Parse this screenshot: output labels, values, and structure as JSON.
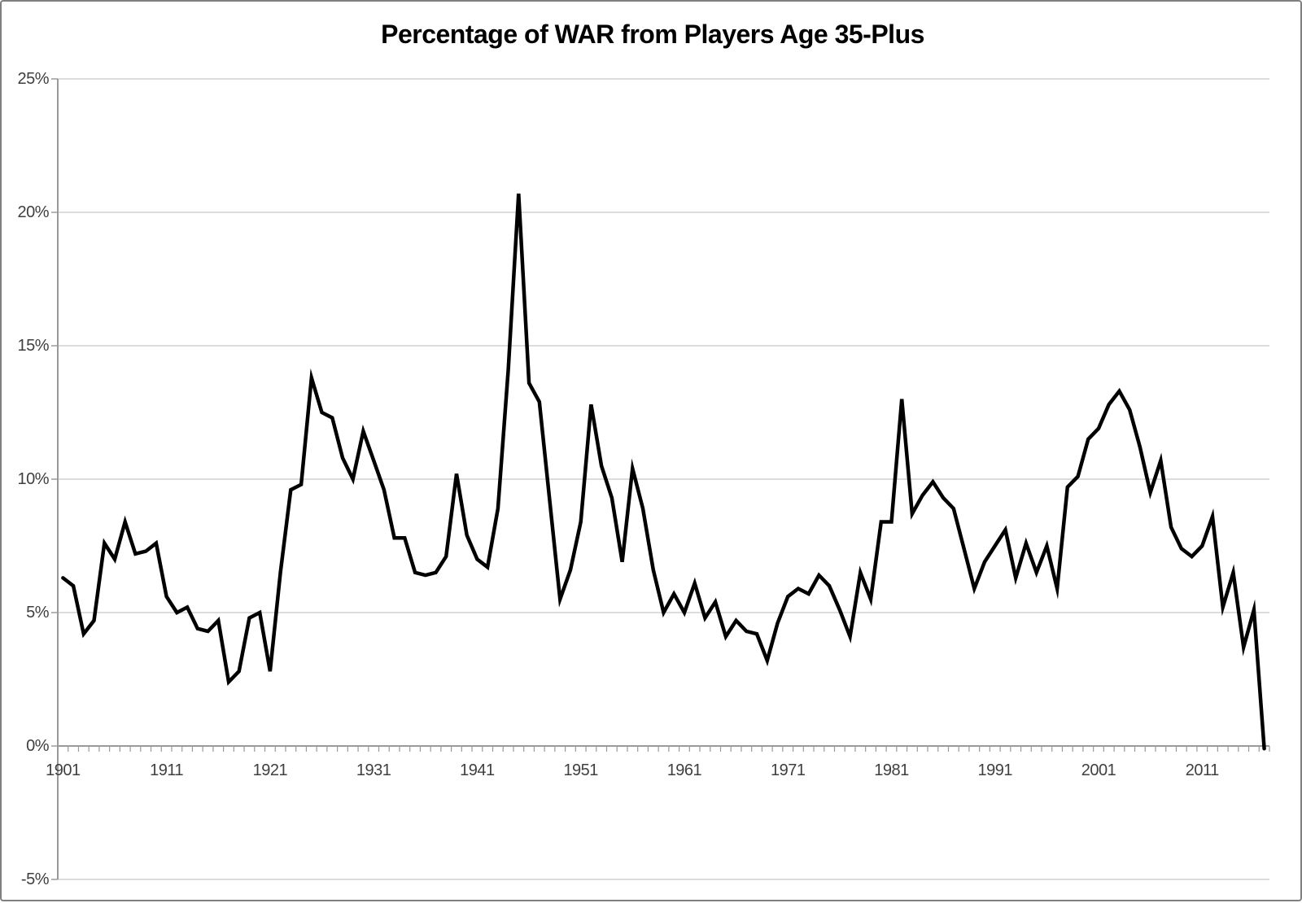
{
  "chart_data": {
    "type": "line",
    "title": "Percentage of WAR from Players Age 35-Plus",
    "xlabel": "",
    "ylabel": "",
    "ylim": [
      -5,
      25
    ],
    "xlim_years": [
      1901,
      2017
    ],
    "grid": "horizontal",
    "legend": "none",
    "ytick_labels": [
      "25%",
      "20%",
      "15%",
      "10%",
      "5%",
      "0%",
      "-5%"
    ],
    "ytick_values": [
      25,
      20,
      15,
      10,
      5,
      0,
      -5
    ],
    "xtick_labels": [
      "1901",
      "1911",
      "1921",
      "1931",
      "1941",
      "1951",
      "1961",
      "1971",
      "1981",
      "1991",
      "2001",
      "2011"
    ],
    "xtick_years": [
      1901,
      1911,
      1921,
      1931,
      1941,
      1951,
      1961,
      1971,
      1981,
      1991,
      2001,
      2011
    ],
    "colors": {
      "line": "#000000",
      "gridline": "#c6c6c6",
      "axis": "#9a9a9a",
      "label": "#3f3f3f",
      "frame": "#7f7f7f",
      "background": "#ffffff"
    },
    "points": [
      [
        1901,
        6.3
      ],
      [
        1902,
        6.0
      ],
      [
        1903,
        4.2
      ],
      [
        1904,
        4.7
      ],
      [
        1905,
        7.6
      ],
      [
        1906,
        7.0
      ],
      [
        1907,
        8.4
      ],
      [
        1908,
        7.2
      ],
      [
        1909,
        7.3
      ],
      [
        1910,
        7.6
      ],
      [
        1911,
        5.6
      ],
      [
        1912,
        5.0
      ],
      [
        1913,
        5.2
      ],
      [
        1914,
        4.4
      ],
      [
        1915,
        4.3
      ],
      [
        1916,
        4.7
      ],
      [
        1917,
        2.4
      ],
      [
        1918,
        2.8
      ],
      [
        1919,
        4.8
      ],
      [
        1920,
        5.0
      ],
      [
        1921,
        2.8
      ],
      [
        1922,
        6.5
      ],
      [
        1923,
        9.6
      ],
      [
        1924,
        9.8
      ],
      [
        1925,
        13.8
      ],
      [
        1926,
        12.5
      ],
      [
        1927,
        12.3
      ],
      [
        1928,
        10.8
      ],
      [
        1929,
        10.0
      ],
      [
        1930,
        11.8
      ],
      [
        1931,
        10.7
      ],
      [
        1932,
        9.6
      ],
      [
        1933,
        7.8
      ],
      [
        1934,
        7.8
      ],
      [
        1935,
        6.5
      ],
      [
        1936,
        6.4
      ],
      [
        1937,
        6.5
      ],
      [
        1938,
        7.1
      ],
      [
        1939,
        10.2
      ],
      [
        1940,
        7.9
      ],
      [
        1941,
        7.0
      ],
      [
        1942,
        6.7
      ],
      [
        1943,
        8.9
      ],
      [
        1944,
        14.1
      ],
      [
        1945,
        20.7
      ],
      [
        1946,
        13.6
      ],
      [
        1947,
        12.9
      ],
      [
        1948,
        9.2
      ],
      [
        1949,
        5.5
      ],
      [
        1950,
        6.6
      ],
      [
        1951,
        8.4
      ],
      [
        1952,
        12.8
      ],
      [
        1953,
        10.5
      ],
      [
        1954,
        9.3
      ],
      [
        1955,
        6.9
      ],
      [
        1956,
        10.4
      ],
      [
        1957,
        8.9
      ],
      [
        1958,
        6.6
      ],
      [
        1959,
        5.0
      ],
      [
        1960,
        5.7
      ],
      [
        1961,
        5.0
      ],
      [
        1962,
        6.1
      ],
      [
        1963,
        4.8
      ],
      [
        1964,
        5.4
      ],
      [
        1965,
        4.1
      ],
      [
        1966,
        4.7
      ],
      [
        1967,
        4.3
      ],
      [
        1968,
        4.2
      ],
      [
        1969,
        3.2
      ],
      [
        1970,
        4.6
      ],
      [
        1971,
        5.6
      ],
      [
        1972,
        5.9
      ],
      [
        1973,
        5.7
      ],
      [
        1974,
        6.4
      ],
      [
        1975,
        6.0
      ],
      [
        1976,
        5.1
      ],
      [
        1977,
        4.1
      ],
      [
        1978,
        6.5
      ],
      [
        1979,
        5.5
      ],
      [
        1980,
        8.4
      ],
      [
        1981,
        8.4
      ],
      [
        1982,
        13.0
      ],
      [
        1983,
        8.7
      ],
      [
        1984,
        9.4
      ],
      [
        1985,
        9.9
      ],
      [
        1986,
        9.3
      ],
      [
        1987,
        8.9
      ],
      [
        1988,
        7.4
      ],
      [
        1989,
        5.9
      ],
      [
        1990,
        6.9
      ],
      [
        1991,
        7.5
      ],
      [
        1992,
        8.1
      ],
      [
        1993,
        6.3
      ],
      [
        1994,
        7.6
      ],
      [
        1995,
        6.5
      ],
      [
        1996,
        7.5
      ],
      [
        1997,
        5.9
      ],
      [
        1998,
        9.7
      ],
      [
        1999,
        10.1
      ],
      [
        2000,
        11.5
      ],
      [
        2001,
        11.9
      ],
      [
        2002,
        12.8
      ],
      [
        2003,
        13.3
      ],
      [
        2004,
        12.6
      ],
      [
        2005,
        11.2
      ],
      [
        2006,
        9.5
      ],
      [
        2007,
        10.7
      ],
      [
        2008,
        8.2
      ],
      [
        2009,
        7.4
      ],
      [
        2010,
        7.1
      ],
      [
        2011,
        7.5
      ],
      [
        2012,
        8.6
      ],
      [
        2013,
        5.2
      ],
      [
        2014,
        6.5
      ],
      [
        2015,
        3.7
      ],
      [
        2016,
        5.1
      ],
      [
        2017,
        -0.1
      ]
    ]
  }
}
